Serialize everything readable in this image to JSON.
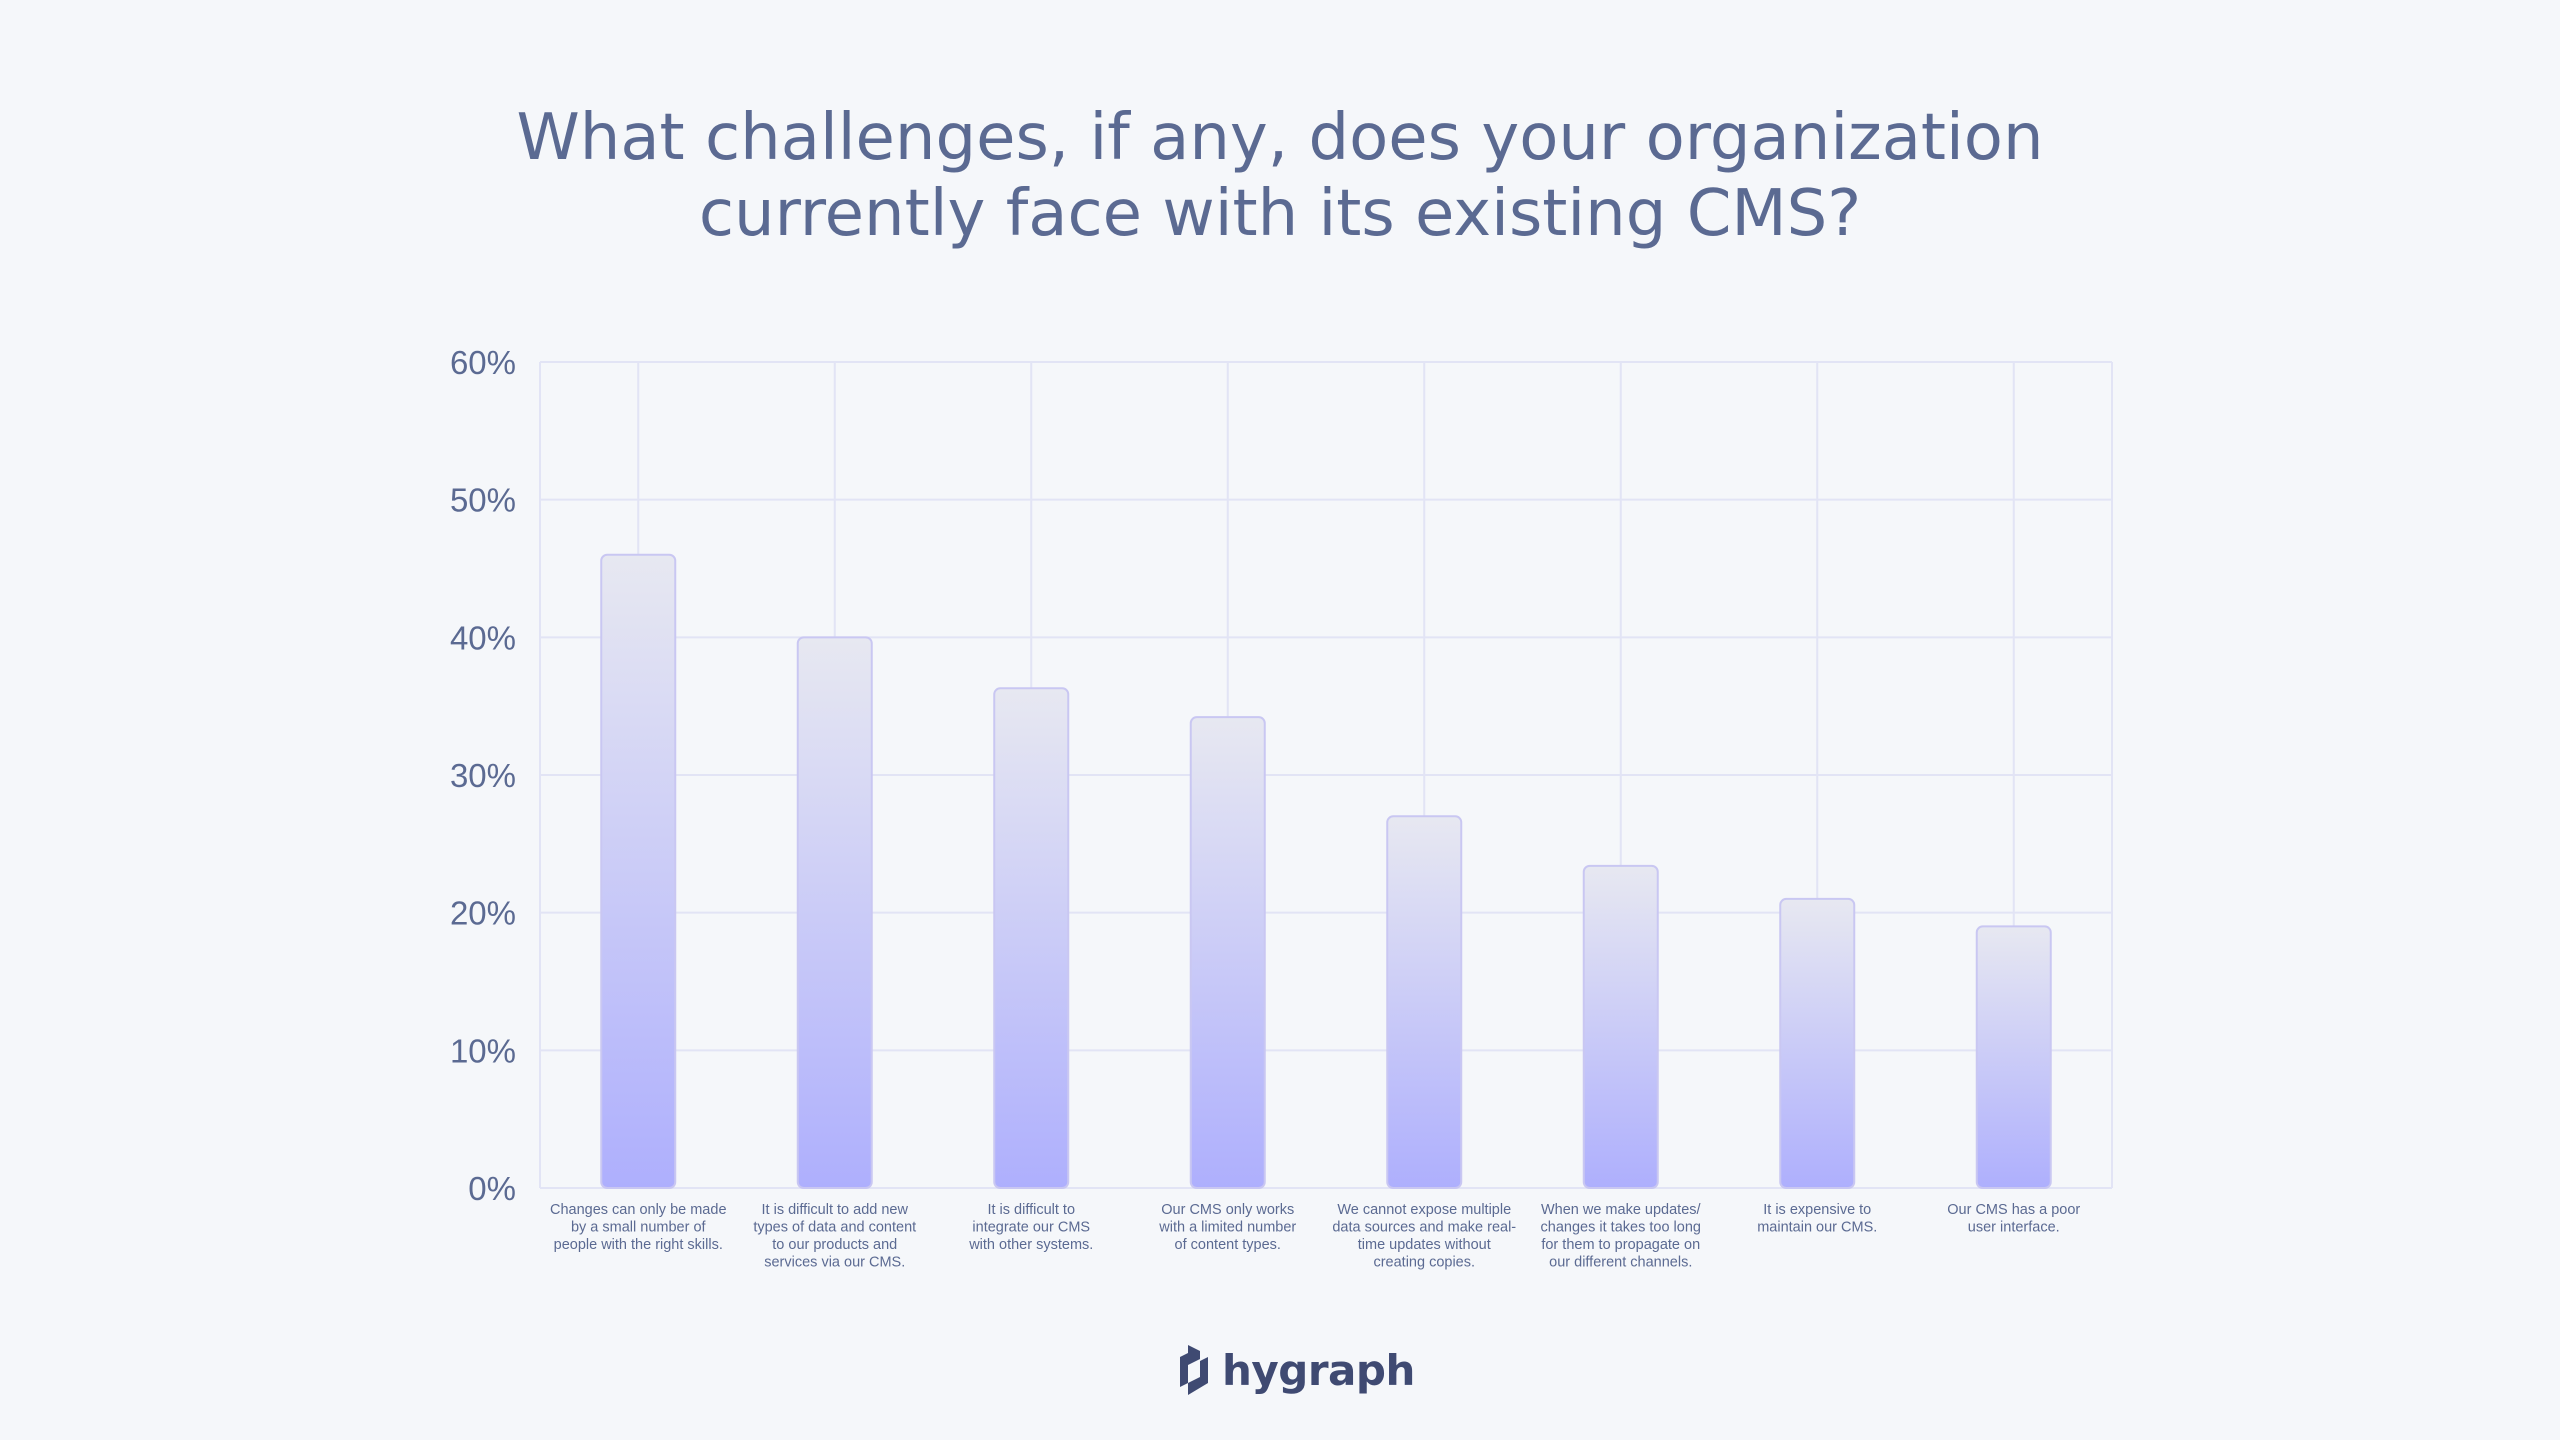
{
  "title": {
    "line1": "What challenges, if any, does your organization",
    "line2": "currently face with its existing CMS?"
  },
  "brand": {
    "name": "hygraph",
    "icon": "hygraph-logo-icon"
  },
  "colors": {
    "background": "#f5f7fa",
    "text": "#5b6a92",
    "grid": "#e2e4f5",
    "bar_top": "#e7e8f1",
    "bar_bottom": "#aeaffd",
    "bar_stroke": "#c9c7f2"
  },
  "chart_data": {
    "type": "bar",
    "title": "What challenges, if any, does your organization currently face with its existing CMS?",
    "xlabel": "",
    "ylabel": "",
    "ylim": [
      0,
      60
    ],
    "yticks": [
      "0%",
      "10%",
      "20%",
      "30%",
      "40%",
      "50%",
      "60%"
    ],
    "grid": true,
    "categories": [
      [
        "Changes can only be made",
        "by a small number of",
        "people with the right skills."
      ],
      [
        "It is difficult to add new",
        "types of data and content",
        "to our products and",
        "services via our CMS."
      ],
      [
        "It is difficult to",
        "integrate our CMS",
        "with other systems."
      ],
      [
        "Our CMS only works",
        "with a limited number",
        "of content types."
      ],
      [
        "We cannot expose multiple",
        "data sources and make real-",
        "time updates without",
        "creating copies."
      ],
      [
        "When we make updates/",
        "changes it takes too long",
        "for them to propagate on",
        "our different channels."
      ],
      [
        "It is expensive to",
        "maintain our CMS."
      ],
      [
        "Our CMS has a poor",
        "user interface."
      ]
    ],
    "values": [
      46,
      40,
      36.3,
      34.2,
      27,
      23.4,
      21,
      19
    ]
  }
}
